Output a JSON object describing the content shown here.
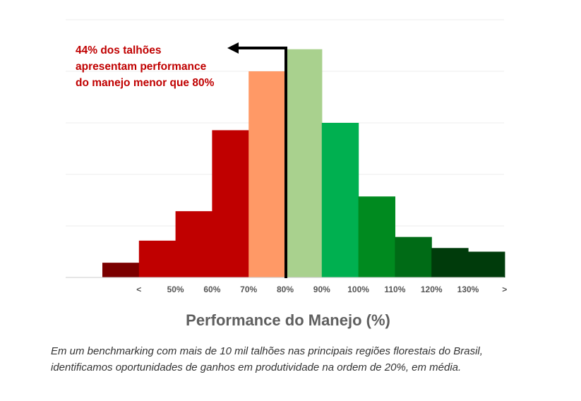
{
  "chart_data": {
    "type": "bar",
    "categories": [
      "<",
      "50%",
      "60%",
      "70%",
      "80%",
      "90%",
      "100%",
      "110%",
      "120%",
      "130%",
      ">"
    ],
    "values": [
      2,
      5,
      9,
      20,
      28,
      31,
      21,
      11,
      5.5,
      4,
      3.5
    ],
    "colors": [
      "#7b0000",
      "#c00000",
      "#c00000",
      "#c00000",
      "#ff9966",
      "#a9d18e",
      "#00b050",
      "#008a1f",
      "#006b16",
      "#003b0b",
      "#003b0b"
    ],
    "xlabel": "Performance do Manejo (%)",
    "ylabel": "",
    "ylim": [
      0,
      35
    ],
    "grid": true,
    "annotation": {
      "lines": [
        "44% dos talhões",
        "apresentam performance",
        "do manejo menor que 80%"
      ],
      "color": "#c00000"
    }
  },
  "caption": {
    "line1": "Em um benchmarking com mais de 10 mil talhões nas principais regiões florestais do Brasil,",
    "line2": "identificamos oportunidades de ganhos em produtividade na ordem de 20%, em média."
  }
}
